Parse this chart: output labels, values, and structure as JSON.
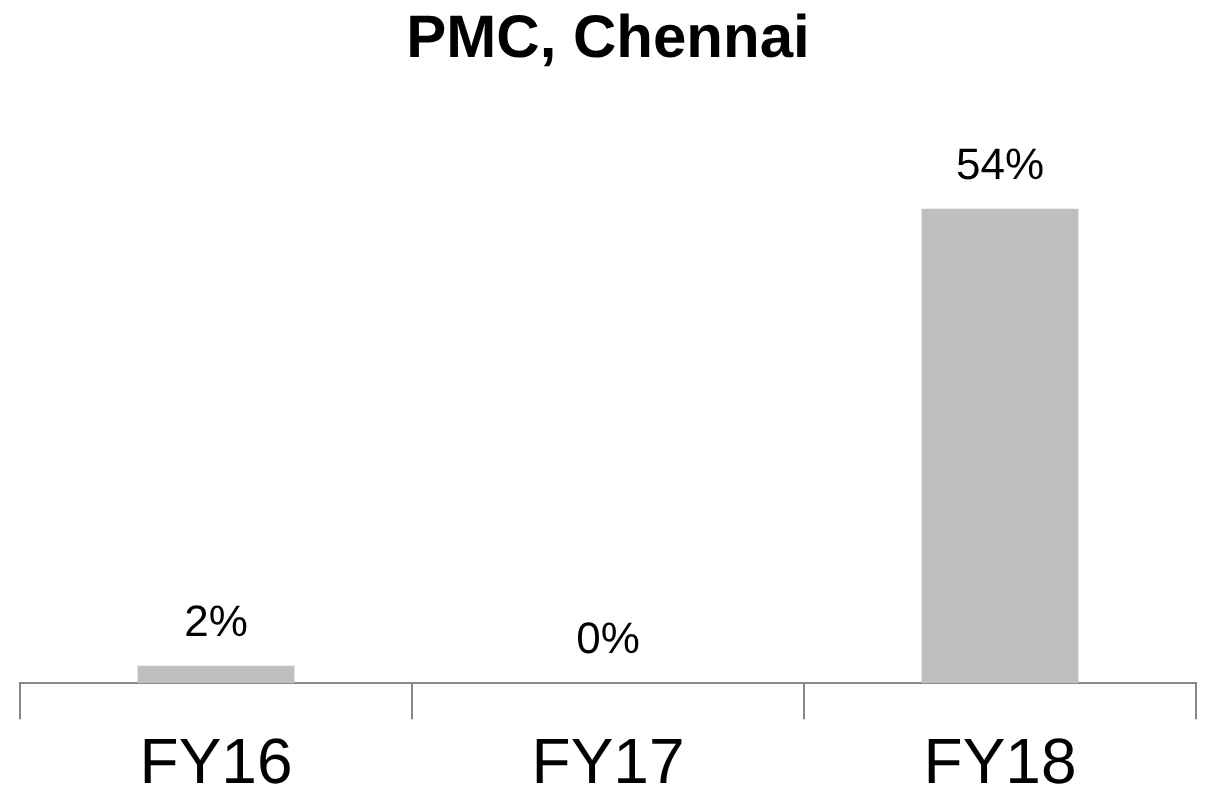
{
  "chart_data": {
    "type": "bar",
    "title": "PMC, Chennai",
    "categories": [
      "FY16",
      "FY17",
      "FY18"
    ],
    "values": [
      2,
      0,
      54
    ],
    "value_labels": [
      "2%",
      "0%",
      "54%"
    ],
    "color": "#bfbfbf",
    "grid": false,
    "legend": false
  }
}
